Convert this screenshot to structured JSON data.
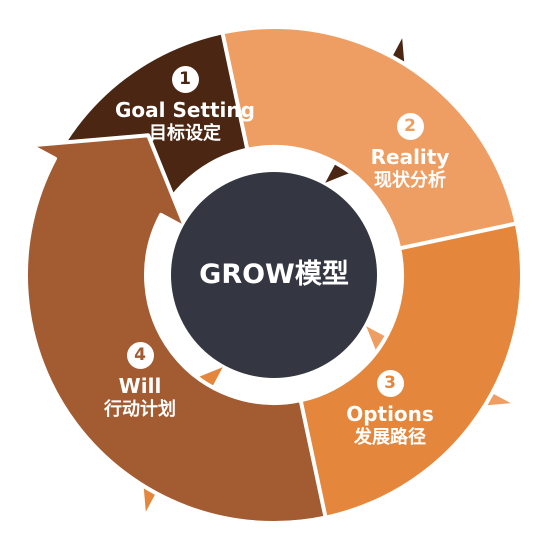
{
  "center": {
    "title": "GROW模型"
  },
  "steps": [
    {
      "number": "1",
      "title_en": "Goal Setting",
      "title_zh": "目标设定",
      "color": "#4A2613"
    },
    {
      "number": "2",
      "title_en": "Reality",
      "title_zh": "现状分析",
      "color": "#EE9E63"
    },
    {
      "number": "3",
      "title_en": "Options",
      "title_zh": "发展路径",
      "color": "#E4873C"
    },
    {
      "number": "4",
      "title_en": "Will",
      "title_zh": "行动计划",
      "color": "#A35B31"
    }
  ],
  "colors": {
    "center_fill": "#343641",
    "ring_gap": "#ffffff"
  }
}
